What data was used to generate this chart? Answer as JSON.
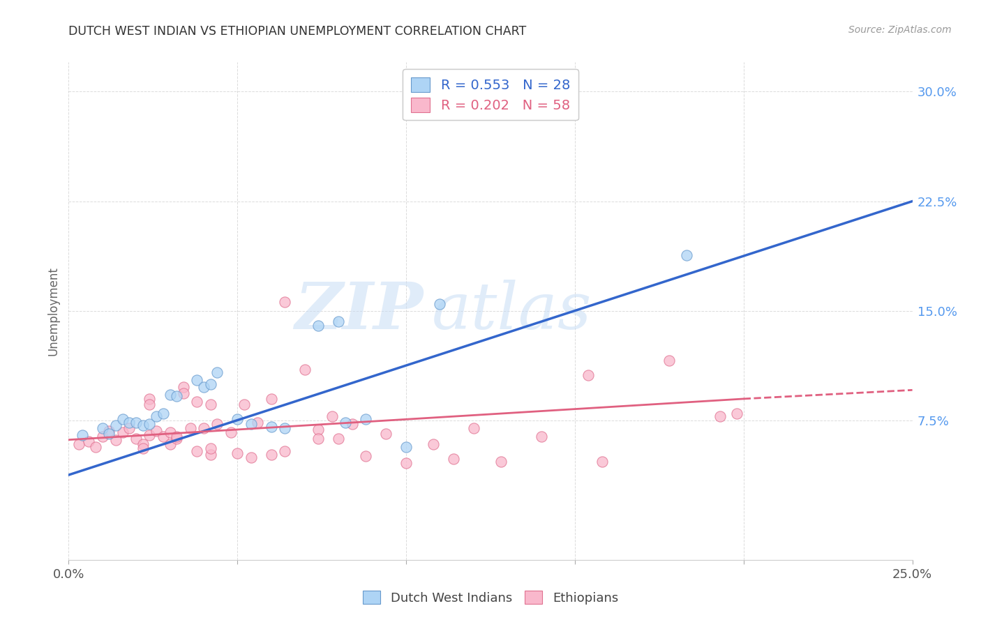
{
  "title": "DUTCH WEST INDIAN VS ETHIOPIAN UNEMPLOYMENT CORRELATION CHART",
  "source": "Source: ZipAtlas.com",
  "ylabel_label": "Unemployment",
  "ytick_values": [
    0.075,
    0.15,
    0.225,
    0.3
  ],
  "ytick_labels": [
    "7.5%",
    "15.0%",
    "22.5%",
    "30.0%"
  ],
  "xlim": [
    0.0,
    0.25
  ],
  "ylim": [
    -0.02,
    0.32
  ],
  "legend_label_blue": "Dutch West Indians",
  "legend_label_pink": "Ethiopians",
  "blue_fill_color": "#aed4f5",
  "pink_fill_color": "#f9b8cc",
  "blue_edge_color": "#6699cc",
  "pink_edge_color": "#e07090",
  "blue_line_color": "#3366cc",
  "pink_line_color": "#e06080",
  "blue_scatter": [
    [
      0.004,
      0.065
    ],
    [
      0.01,
      0.07
    ],
    [
      0.012,
      0.066
    ],
    [
      0.014,
      0.072
    ],
    [
      0.016,
      0.076
    ],
    [
      0.018,
      0.074
    ],
    [
      0.02,
      0.074
    ],
    [
      0.022,
      0.072
    ],
    [
      0.024,
      0.073
    ],
    [
      0.026,
      0.078
    ],
    [
      0.028,
      0.08
    ],
    [
      0.03,
      0.093
    ],
    [
      0.032,
      0.092
    ],
    [
      0.038,
      0.103
    ],
    [
      0.04,
      0.098
    ],
    [
      0.042,
      0.1
    ],
    [
      0.044,
      0.108
    ],
    [
      0.05,
      0.076
    ],
    [
      0.054,
      0.073
    ],
    [
      0.06,
      0.071
    ],
    [
      0.064,
      0.07
    ],
    [
      0.074,
      0.14
    ],
    [
      0.08,
      0.143
    ],
    [
      0.082,
      0.074
    ],
    [
      0.088,
      0.076
    ],
    [
      0.1,
      0.057
    ],
    [
      0.11,
      0.155
    ],
    [
      0.183,
      0.188
    ]
  ],
  "pink_scatter": [
    [
      0.003,
      0.059
    ],
    [
      0.006,
      0.061
    ],
    [
      0.008,
      0.057
    ],
    [
      0.01,
      0.064
    ],
    [
      0.012,
      0.068
    ],
    [
      0.014,
      0.062
    ],
    [
      0.016,
      0.067
    ],
    [
      0.018,
      0.07
    ],
    [
      0.02,
      0.063
    ],
    [
      0.022,
      0.059
    ],
    [
      0.022,
      0.056
    ],
    [
      0.024,
      0.065
    ],
    [
      0.024,
      0.09
    ],
    [
      0.024,
      0.086
    ],
    [
      0.026,
      0.068
    ],
    [
      0.028,
      0.064
    ],
    [
      0.03,
      0.059
    ],
    [
      0.03,
      0.067
    ],
    [
      0.032,
      0.063
    ],
    [
      0.032,
      0.064
    ],
    [
      0.034,
      0.098
    ],
    [
      0.034,
      0.094
    ],
    [
      0.036,
      0.07
    ],
    [
      0.038,
      0.088
    ],
    [
      0.038,
      0.054
    ],
    [
      0.04,
      0.07
    ],
    [
      0.042,
      0.086
    ],
    [
      0.042,
      0.052
    ],
    [
      0.042,
      0.056
    ],
    [
      0.044,
      0.073
    ],
    [
      0.048,
      0.067
    ],
    [
      0.05,
      0.053
    ],
    [
      0.052,
      0.086
    ],
    [
      0.054,
      0.05
    ],
    [
      0.056,
      0.074
    ],
    [
      0.06,
      0.09
    ],
    [
      0.06,
      0.052
    ],
    [
      0.064,
      0.054
    ],
    [
      0.064,
      0.156
    ],
    [
      0.07,
      0.11
    ],
    [
      0.074,
      0.069
    ],
    [
      0.074,
      0.063
    ],
    [
      0.078,
      0.078
    ],
    [
      0.08,
      0.063
    ],
    [
      0.084,
      0.073
    ],
    [
      0.088,
      0.051
    ],
    [
      0.094,
      0.066
    ],
    [
      0.1,
      0.046
    ],
    [
      0.108,
      0.059
    ],
    [
      0.114,
      0.049
    ],
    [
      0.12,
      0.07
    ],
    [
      0.128,
      0.047
    ],
    [
      0.14,
      0.064
    ],
    [
      0.154,
      0.106
    ],
    [
      0.158,
      0.047
    ],
    [
      0.178,
      0.116
    ],
    [
      0.193,
      0.078
    ],
    [
      0.198,
      0.08
    ]
  ],
  "blue_line": [
    [
      0.0,
      0.038
    ],
    [
      0.25,
      0.225
    ]
  ],
  "pink_line_solid": [
    [
      0.0,
      0.062
    ],
    [
      0.2,
      0.09
    ]
  ],
  "pink_line_dashed": [
    [
      0.2,
      0.09
    ],
    [
      0.25,
      0.096
    ]
  ],
  "watermark_zip": "ZIP",
  "watermark_atlas": "atlas",
  "background_color": "#ffffff",
  "grid_color": "#cccccc"
}
